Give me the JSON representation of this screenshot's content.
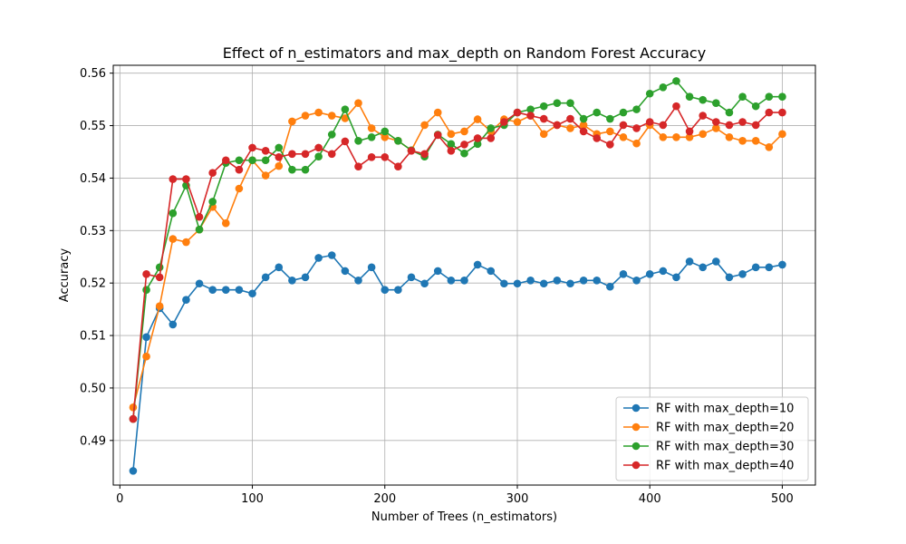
{
  "chart_data": {
    "type": "line",
    "title": "Effect of n_estimators and max_depth on Random Forest Accuracy",
    "xlabel": "Number of Trees (n_estimators)",
    "ylabel": "Accuracy",
    "xlim": [
      -5,
      525
    ],
    "ylim": [
      0.4815,
      0.5615
    ],
    "xticks": [
      0,
      100,
      200,
      300,
      400,
      500
    ],
    "yticks": [
      0.49,
      0.5,
      0.51,
      0.52,
      0.53,
      0.54,
      0.55,
      0.56
    ],
    "xtick_labels": [
      "0",
      "100",
      "200",
      "300",
      "400",
      "500"
    ],
    "ytick_labels": [
      "0.49",
      "0.50",
      "0.51",
      "0.52",
      "0.53",
      "0.54",
      "0.55",
      "0.56"
    ],
    "grid": true,
    "legend_position": "lower-right",
    "marker": "circle",
    "x": [
      10,
      20,
      30,
      40,
      50,
      60,
      70,
      80,
      90,
      100,
      110,
      120,
      130,
      140,
      150,
      160,
      170,
      180,
      190,
      200,
      210,
      220,
      230,
      240,
      250,
      260,
      270,
      280,
      290,
      300,
      310,
      320,
      330,
      340,
      350,
      360,
      370,
      380,
      390,
      400,
      410,
      420,
      430,
      440,
      450,
      460,
      470,
      480,
      490,
      500
    ],
    "series": [
      {
        "name": "RF with max_depth=10",
        "color": "#1f77b4",
        "values": [
          0.4842,
          0.5097,
          0.5152,
          0.5121,
          0.5168,
          0.5199,
          0.5187,
          0.5187,
          0.5187,
          0.518,
          0.5211,
          0.523,
          0.5205,
          0.5211,
          0.5248,
          0.5253,
          0.5223,
          0.5205,
          0.523,
          0.5187,
          0.5187,
          0.5211,
          0.5199,
          0.5223,
          0.5205,
          0.5205,
          0.5235,
          0.5223,
          0.5199,
          0.5199,
          0.5205,
          0.5199,
          0.5205,
          0.5199,
          0.5205,
          0.5205,
          0.5193,
          0.5217,
          0.5205,
          0.5217,
          0.5223,
          0.5211,
          0.5241,
          0.523,
          0.5241,
          0.5211,
          0.5217,
          0.523,
          0.523,
          0.5235
        ]
      },
      {
        "name": "RF with max_depth=20",
        "color": "#ff7f0e",
        "values": [
          0.4963,
          0.506,
          0.5156,
          0.5284,
          0.5278,
          0.5302,
          0.5345,
          0.5314,
          0.538,
          0.5434,
          0.5405,
          0.5423,
          0.5508,
          0.5519,
          0.5525,
          0.5519,
          0.5514,
          0.5543,
          0.5495,
          0.5478,
          0.5471,
          0.5453,
          0.5501,
          0.5525,
          0.5484,
          0.5489,
          0.5512,
          0.5489,
          0.5512,
          0.5507,
          0.5519,
          0.5484,
          0.5501,
          0.5495,
          0.5501,
          0.5484,
          0.5489,
          0.5478,
          0.5466,
          0.5501,
          0.5478,
          0.5478,
          0.5478,
          0.5484,
          0.5495,
          0.5478,
          0.5471,
          0.5471,
          0.5459,
          0.5484
        ]
      },
      {
        "name": "RF with max_depth=30",
        "color": "#2ca02c",
        "values": [
          0.4941,
          0.5187,
          0.523,
          0.5333,
          0.5386,
          0.5302,
          0.5355,
          0.5429,
          0.5434,
          0.5434,
          0.5434,
          0.5458,
          0.5416,
          0.5416,
          0.5441,
          0.5483,
          0.5531,
          0.5471,
          0.5478,
          0.5489,
          0.5471,
          0.5453,
          0.5441,
          0.5483,
          0.5465,
          0.5447,
          0.5465,
          0.5495,
          0.5501,
          0.5525,
          0.5531,
          0.5537,
          0.5543,
          0.5543,
          0.5513,
          0.5525,
          0.5513,
          0.5525,
          0.5531,
          0.5561,
          0.5573,
          0.5585,
          0.5555,
          0.5549,
          0.5543,
          0.5525,
          0.5555,
          0.5537,
          0.5555,
          0.5555
        ]
      },
      {
        "name": "RF with max_depth=40",
        "color": "#d62728",
        "values": [
          0.4941,
          0.5217,
          0.5211,
          0.5398,
          0.5398,
          0.5326,
          0.541,
          0.5434,
          0.5416,
          0.5458,
          0.5452,
          0.544,
          0.5446,
          0.5446,
          0.5458,
          0.5446,
          0.547,
          0.5422,
          0.544,
          0.544,
          0.5422,
          0.5452,
          0.5446,
          0.5482,
          0.5452,
          0.5464,
          0.5476,
          0.5476,
          0.5507,
          0.5525,
          0.5519,
          0.5513,
          0.5501,
          0.5513,
          0.5489,
          0.5476,
          0.5464,
          0.5501,
          0.5495,
          0.5507,
          0.5501,
          0.5537,
          0.5489,
          0.5519,
          0.5507,
          0.5501,
          0.5507,
          0.5501,
          0.5525,
          0.5525
        ]
      }
    ]
  }
}
